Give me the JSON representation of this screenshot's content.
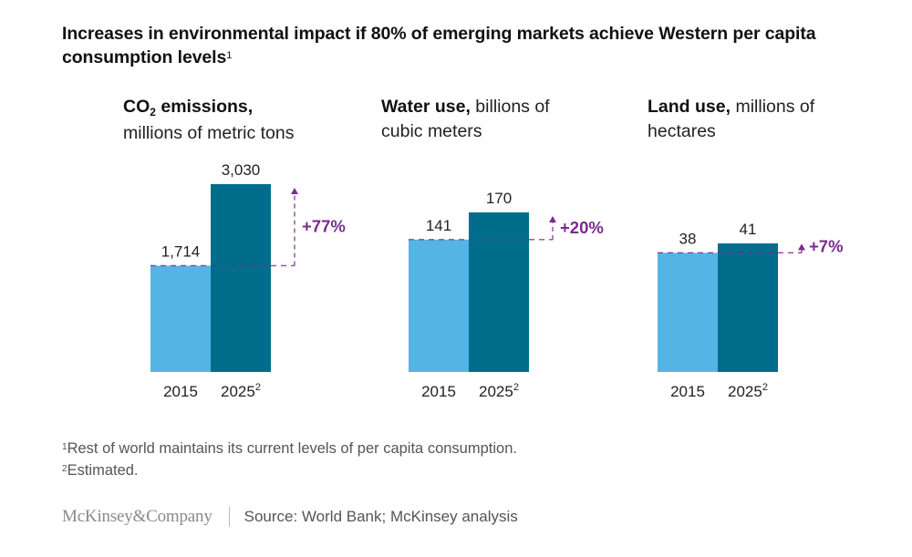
{
  "title": {
    "text": "Increases in environmental impact if 80% of emerging markets achieve Western per capita consumption levels",
    "footnote_ref": "1"
  },
  "colors": {
    "bar_2015": "#55b4e6",
    "bar_2025": "#006d8c",
    "change": "#7a2c8c"
  },
  "chart_data": [
    {
      "type": "bar",
      "title_bold": "CO",
      "title_sub": "2",
      "title_bold_rest": " emissions,",
      "title_unit": "millions of metric tons",
      "categories": [
        "2015",
        "2025"
      ],
      "category_superscripts": [
        "",
        "2"
      ],
      "values": [
        1714,
        3030
      ],
      "value_labels": [
        "1,714",
        "3,030"
      ],
      "change_label": "+77%"
    },
    {
      "type": "bar",
      "title_bold": "Water use,",
      "title_unit": " billions of cubic meters",
      "categories": [
        "2015",
        "2025"
      ],
      "category_superscripts": [
        "",
        "2"
      ],
      "values": [
        141,
        170
      ],
      "value_labels": [
        "141",
        "170"
      ],
      "change_label": "+20%"
    },
    {
      "type": "bar",
      "title_bold": "Land use,",
      "title_unit": " millions of hectares",
      "categories": [
        "2015",
        "2025"
      ],
      "category_superscripts": [
        "",
        "2"
      ],
      "values": [
        38,
        41
      ],
      "value_labels": [
        "38",
        "41"
      ],
      "change_label": "+7%"
    }
  ],
  "footnotes": [
    {
      "ref": "1",
      "text": "Rest of world maintains its current levels of per capita consumption."
    },
    {
      "ref": "2",
      "text": "Estimated."
    }
  ],
  "logo": "McKinsey&Company",
  "source": "Source: World Bank; McKinsey analysis"
}
